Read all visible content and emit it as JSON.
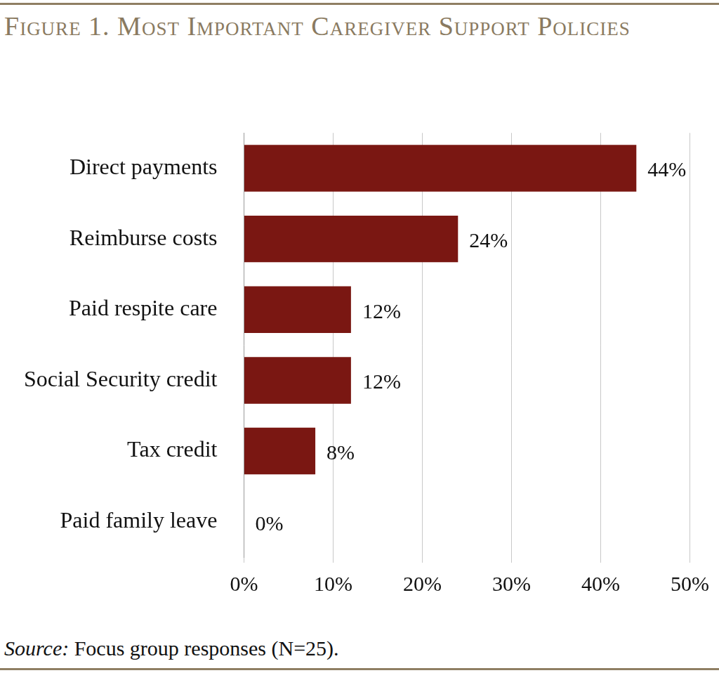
{
  "chart_data": {
    "type": "bar",
    "orientation": "horizontal",
    "title": "Figure 1. Most Important Caregiver Support Policies",
    "source": "Source: Focus group responses (N=25).",
    "categories": [
      "Direct payments",
      "Reimburse costs",
      "Paid respite care",
      "Social Security credit",
      "Tax credit",
      "Paid family leave"
    ],
    "values": [
      44,
      24,
      12,
      12,
      8,
      0
    ],
    "value_labels": [
      "44%",
      "24%",
      "12%",
      "12%",
      "8%",
      "0%"
    ],
    "data_labels": true,
    "color": "#7a1712",
    "xlim": [
      0,
      50
    ],
    "xticks": [
      {
        "value": 0,
        "label": "0%"
      },
      {
        "value": 10,
        "label": "10%"
      },
      {
        "value": 20,
        "label": "20%"
      },
      {
        "value": 30,
        "label": "30%"
      },
      {
        "value": 40,
        "label": "40%"
      },
      {
        "value": 50,
        "label": "50%"
      }
    ],
    "grid": true
  }
}
